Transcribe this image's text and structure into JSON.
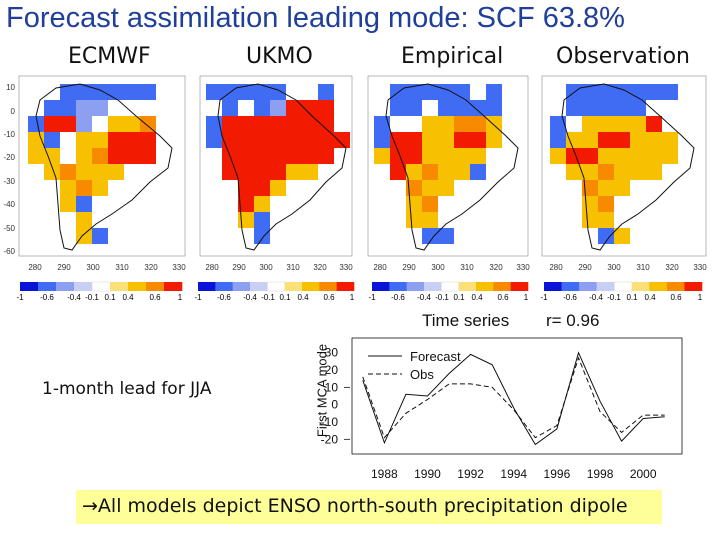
{
  "title": "Forecast assimilation leading mode: SCF 63.8%",
  "panels": [
    {
      "label": "ECMWF",
      "x_ticks": [
        "280",
        "290",
        "300",
        "310",
        "320",
        "330"
      ],
      "y_ticks": [
        "10",
        "0",
        "-10",
        "-20",
        "-30",
        "-40",
        "-50",
        "-60"
      ],
      "colorbar_labels": [
        "-1",
        "-0.6",
        "-0.4",
        "-0.1",
        "0.1",
        "0.4",
        "0.6",
        "1"
      ]
    },
    {
      "label": "UKMO",
      "x_ticks": [
        "280",
        "290",
        "300",
        "310",
        "320",
        "330"
      ],
      "colorbar_labels": [
        "-1",
        "-0.6",
        "-0.4",
        "-0.1",
        "0.1",
        "0.4",
        "0.6",
        "1"
      ]
    },
    {
      "label": "Empirical",
      "x_ticks": [
        "280",
        "290",
        "300",
        "310",
        "320",
        "330"
      ],
      "colorbar_labels": [
        "-1",
        "-0.6",
        "-0.4",
        "-0.1",
        "0.1",
        "0.4",
        "0.6",
        "1"
      ]
    },
    {
      "label": "Observation",
      "x_ticks": [
        "280",
        "290",
        "300",
        "310",
        "320",
        "330"
      ],
      "colorbar_labels": [
        "-1",
        "-0.6",
        "-0.4",
        "-0.1",
        "0.1",
        "0.4",
        "0.6",
        "1"
      ]
    }
  ],
  "colors": {
    "title": "#1f3f9a",
    "highlight": "#ffff99",
    "colorbar": [
      "#0a14d8",
      "#3f6cf2",
      "#8c9ff0",
      "#c8cff5",
      "#ffffff",
      "#fbe07a",
      "#f7c000",
      "#f88a00",
      "#f21a00"
    ]
  },
  "timeseries": {
    "title": "Time series",
    "r_label": "r= 0.96",
    "ylabel": "First MCA mode",
    "legend": [
      "Forecast",
      "Obs"
    ]
  },
  "chart_data": {
    "type": "line",
    "x": [
      1987,
      1988,
      1989,
      1990,
      1991,
      1992,
      1993,
      1994,
      1995,
      1996,
      1997,
      1998,
      1999,
      2000,
      2001
    ],
    "series": [
      {
        "name": "Forecast",
        "values": [
          14,
          -22,
          6,
          5,
          18,
          29,
          23,
          -2,
          -23,
          -14,
          30,
          2,
          -21,
          -8,
          -7
        ]
      },
      {
        "name": "Obs",
        "values": [
          16,
          -19,
          -5,
          3,
          12,
          12,
          10,
          -3,
          -19,
          -12,
          27,
          -4,
          -16,
          -6,
          -6
        ]
      }
    ],
    "y_ticks": [
      30,
      20,
      10,
      0,
      -10,
      -20
    ],
    "x_ticks": [
      1988,
      1990,
      1992,
      1994,
      1996,
      1998,
      2000
    ],
    "ylim": [
      -25,
      35
    ],
    "xlim": [
      1986.5,
      2001.8
    ]
  },
  "lead_note": "1-month lead for JJA",
  "conclusion": "→All models depict ENSO north-south precipitation dipole"
}
